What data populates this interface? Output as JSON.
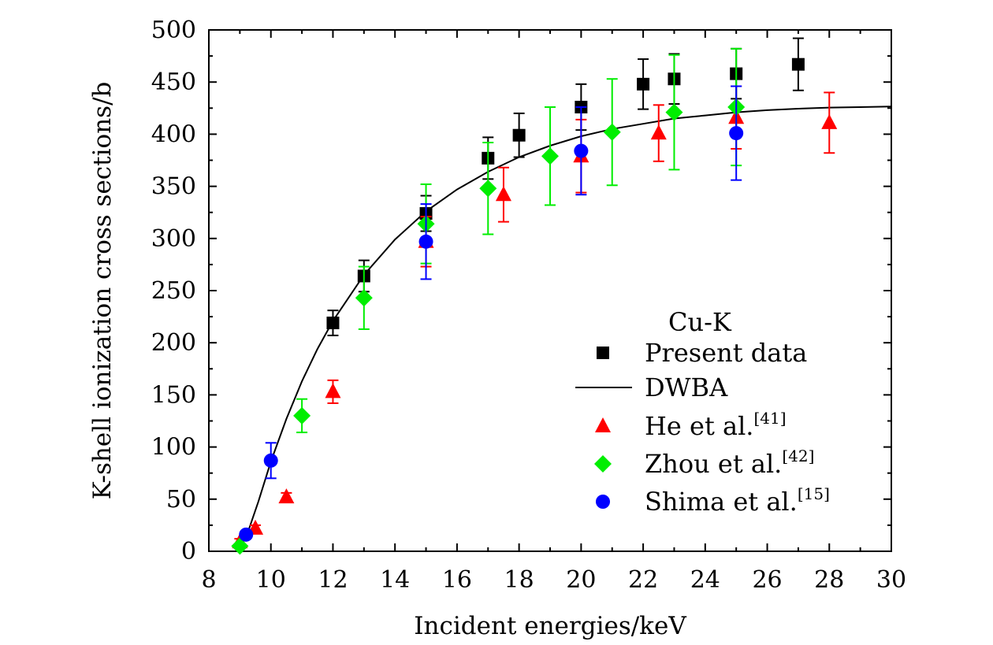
{
  "chart_data": {
    "type": "scatter",
    "title": "",
    "xlabel": "Incident energies/keV",
    "ylabel": "K-shell ionization cross sections/b",
    "xlim": [
      8,
      30
    ],
    "ylim": [
      0,
      500
    ],
    "xticks": [
      8,
      10,
      12,
      14,
      16,
      18,
      20,
      22,
      24,
      26,
      28,
      30
    ],
    "yticks": [
      0,
      50,
      100,
      150,
      200,
      250,
      300,
      350,
      400,
      450,
      500
    ],
    "grid": false,
    "legend_title": "Cu-K",
    "legend_position": "bottom-right",
    "series": [
      {
        "name": "Present data",
        "marker": "square",
        "color": "#000000",
        "points": [
          {
            "x": 12,
            "y": 219,
            "err": 12
          },
          {
            "x": 13,
            "y": 264,
            "err": 15
          },
          {
            "x": 15,
            "y": 324,
            "err": 17
          },
          {
            "x": 17,
            "y": 377,
            "err": 20
          },
          {
            "x": 18,
            "y": 399,
            "err": 21
          },
          {
            "x": 20,
            "y": 426,
            "err": 22
          },
          {
            "x": 22,
            "y": 448,
            "err": 24
          },
          {
            "x": 23,
            "y": 453,
            "err": 24
          },
          {
            "x": 25,
            "y": 458,
            "err": 24
          },
          {
            "x": 27,
            "y": 467,
            "err": 25
          }
        ]
      },
      {
        "name": "DWBA",
        "marker": "line",
        "color": "#000000",
        "points": [
          {
            "x": 8.98,
            "y": 0
          },
          {
            "x": 9.3,
            "y": 22
          },
          {
            "x": 9.6,
            "y": 48
          },
          {
            "x": 10,
            "y": 86
          },
          {
            "x": 10.5,
            "y": 127
          },
          {
            "x": 11,
            "y": 163
          },
          {
            "x": 11.5,
            "y": 194
          },
          {
            "x": 12,
            "y": 221
          },
          {
            "x": 13,
            "y": 265
          },
          {
            "x": 14,
            "y": 299
          },
          {
            "x": 15,
            "y": 326
          },
          {
            "x": 16,
            "y": 347
          },
          {
            "x": 17,
            "y": 364
          },
          {
            "x": 18,
            "y": 378
          },
          {
            "x": 19,
            "y": 389
          },
          {
            "x": 20,
            "y": 398
          },
          {
            "x": 21,
            "y": 405
          },
          {
            "x": 22,
            "y": 410
          },
          {
            "x": 23,
            "y": 415
          },
          {
            "x": 24,
            "y": 418
          },
          {
            "x": 25,
            "y": 421
          },
          {
            "x": 26,
            "y": 423
          },
          {
            "x": 27,
            "y": 424.5
          },
          {
            "x": 28,
            "y": 425.5
          },
          {
            "x": 29,
            "y": 426
          },
          {
            "x": 30,
            "y": 426.5
          }
        ]
      },
      {
        "name": "He et al.",
        "ref": "[41]",
        "marker": "triangle",
        "color": "#ff0000",
        "points": [
          {
            "x": 9,
            "y": 9,
            "err": 3
          },
          {
            "x": 9.5,
            "y": 22,
            "err": 3
          },
          {
            "x": 10.5,
            "y": 52,
            "err": 4
          },
          {
            "x": 12,
            "y": 153,
            "err": 11
          },
          {
            "x": 15,
            "y": 297,
            "err": 24
          },
          {
            "x": 17.5,
            "y": 342,
            "err": 26
          },
          {
            "x": 20,
            "y": 379,
            "err": 35
          },
          {
            "x": 22.5,
            "y": 401,
            "err": 27
          },
          {
            "x": 25,
            "y": 416,
            "err": 30
          },
          {
            "x": 28,
            "y": 411,
            "err": 29
          }
        ]
      },
      {
        "name": "Zhou et al.",
        "ref": "[42]",
        "marker": "diamond",
        "color": "#00ee00",
        "points": [
          {
            "x": 9,
            "y": 5,
            "err": 2
          },
          {
            "x": 11,
            "y": 130,
            "err": 16
          },
          {
            "x": 13,
            "y": 243,
            "err": 30
          },
          {
            "x": 15,
            "y": 314,
            "err": 38
          },
          {
            "x": 17,
            "y": 348,
            "err": 44
          },
          {
            "x": 19,
            "y": 379,
            "err": 47
          },
          {
            "x": 21,
            "y": 402,
            "err": 51
          },
          {
            "x": 23,
            "y": 421,
            "err": 55
          },
          {
            "x": 25,
            "y": 426,
            "err": 56
          }
        ]
      },
      {
        "name": "Shima et al.",
        "ref": "[15]",
        "marker": "circle",
        "color": "#0000ff",
        "points": [
          {
            "x": 9.2,
            "y": 16,
            "err": 3
          },
          {
            "x": 10,
            "y": 87,
            "err": 17
          },
          {
            "x": 15,
            "y": 297,
            "err": 36
          },
          {
            "x": 20,
            "y": 384,
            "err": 42
          },
          {
            "x": 25,
            "y": 401,
            "err": 45
          }
        ]
      }
    ]
  }
}
